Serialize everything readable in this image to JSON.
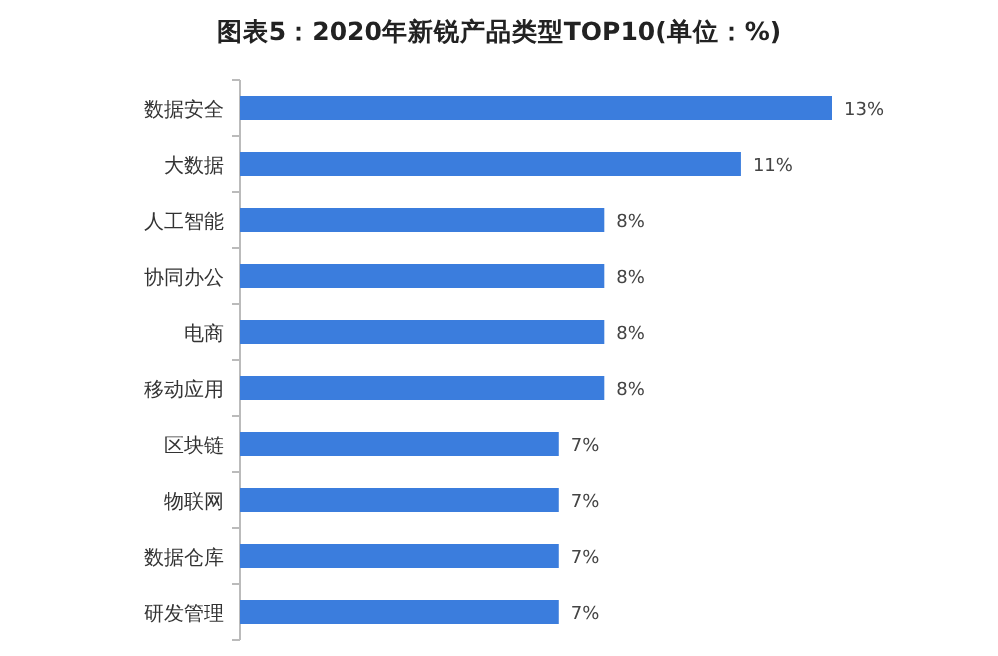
{
  "chart_data": {
    "type": "bar",
    "orientation": "horizontal",
    "title": "图表5：2020年新锐产品类型TOP10(单位：%)",
    "categories": [
      "数据安全",
      "大数据",
      "人工智能",
      "协同办公",
      "电商",
      "移动应用",
      "区块链",
      "物联网",
      "数据仓库",
      "研发管理"
    ],
    "values": [
      13,
      11,
      8,
      8,
      8,
      8,
      7,
      7,
      7,
      7
    ],
    "value_labels": [
      "13%",
      "11%",
      "8%",
      "8%",
      "8%",
      "8%",
      "7%",
      "7%",
      "7%",
      "7%"
    ],
    "color": "#3b7ddd"
  }
}
